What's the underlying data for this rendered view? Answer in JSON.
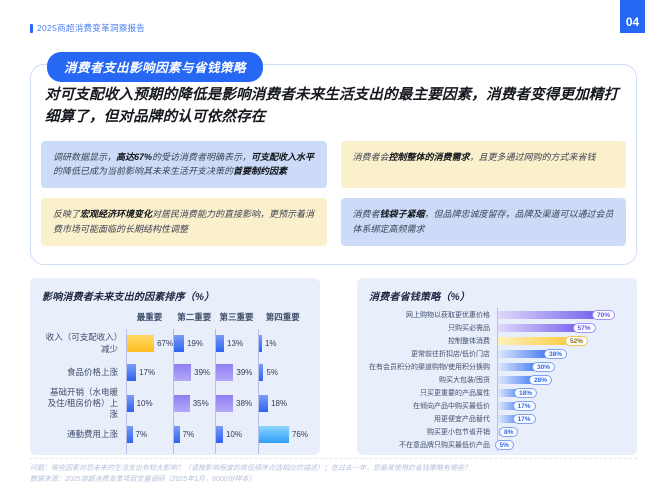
{
  "header": {
    "report_title": "2025商超消费变革洞察报告",
    "page_number": "04"
  },
  "section": {
    "badge": "消费者支出影响因素与省钱策略",
    "headline": "对可支配收入预期的降低是影响消费者未来生活支出的最主要因素，消费者变得更加精打细算了，但对品牌的认可依然存在"
  },
  "callouts": [
    {
      "tone": "blue",
      "segments": [
        {
          "text": "调研数据显示，",
          "bold": false
        },
        {
          "text": "高达67%",
          "bold": true
        },
        {
          "text": "的受访消费者明确表示，",
          "bold": false
        },
        {
          "text": "可支配收入水平",
          "bold": true
        },
        {
          "text": "的降低已成为当前影响其未来生活开支决策的",
          "bold": false
        },
        {
          "text": "首要制约因素",
          "bold": true
        }
      ]
    },
    {
      "tone": "yellow",
      "segments": [
        {
          "text": "消费者会",
          "bold": false
        },
        {
          "text": "控制整体的消费需求",
          "bold": true
        },
        {
          "text": "，且更多通过网购的方式来省钱",
          "bold": false
        }
      ]
    },
    {
      "tone": "yellow",
      "segments": [
        {
          "text": "反映了",
          "bold": false
        },
        {
          "text": "宏观经济环境变化",
          "bold": true
        },
        {
          "text": "对居民消费能力的直接影响，更预示着消费市场可能面临的长期结构性调整",
          "bold": false
        }
      ]
    },
    {
      "tone": "blue",
      "segments": [
        {
          "text": "消费者",
          "bold": false
        },
        {
          "text": "钱袋子紧缩",
          "bold": true
        },
        {
          "text": "，但品牌忠诚度留存，品牌及渠道可以通过会员体系绑定高频需求",
          "bold": false
        }
      ]
    }
  ],
  "chart_data": [
    {
      "type": "bar",
      "title": "影响消费者未来支出的因素排序（%）",
      "orientation": "horizontal-grouped",
      "unit": "%",
      "xlim": [
        0,
        80
      ],
      "columns": [
        "最重要",
        "第二重要",
        "第三重要",
        "第四重要"
      ],
      "rows": [
        {
          "label": "收入（可支配收入）减少",
          "values": [
            67,
            19,
            13,
            1
          ],
          "colors": [
            "yellow",
            "blue",
            "blue",
            "blue"
          ]
        },
        {
          "label": "食品价格上涨",
          "values": [
            17,
            39,
            39,
            5
          ],
          "colors": [
            "blue",
            "purple",
            "purple",
            "blue"
          ]
        },
        {
          "label": "基础开销（水电暖及住/租房价格）上涨",
          "values": [
            10,
            35,
            38,
            18
          ],
          "colors": [
            "blue",
            "purple",
            "purple",
            "blue"
          ]
        },
        {
          "label": "通勤费用上涨",
          "values": [
            7,
            7,
            10,
            76
          ],
          "colors": [
            "blue",
            "blue",
            "blue",
            "cyan"
          ]
        }
      ]
    },
    {
      "type": "bar",
      "title": "消费者省钱策略（%）",
      "orientation": "horizontal",
      "unit": "%",
      "xlim": [
        0,
        80
      ],
      "items": [
        {
          "label": "网上购物以获取更优惠价格",
          "value": 70,
          "color": "purple"
        },
        {
          "label": "只购买必需品",
          "value": 57,
          "color": "purple"
        },
        {
          "label": "控制整体消费",
          "value": 52,
          "color": "yellow"
        },
        {
          "label": "更常前往折扣店/低价门店",
          "value": 38,
          "color": "blue"
        },
        {
          "label": "在有会员积分的渠道购物/使用积分换购",
          "value": 30,
          "color": "blue"
        },
        {
          "label": "购买大包装/囤货",
          "value": 28,
          "color": "blue"
        },
        {
          "label": "只买更重要的产品属性",
          "value": 18,
          "color": "blue"
        },
        {
          "label": "在倾向产品中购买最低价",
          "value": 17,
          "color": "blue"
        },
        {
          "label": "用更便宜产品替代",
          "value": 17,
          "color": "blue"
        },
        {
          "label": "购买更小包节省开销",
          "value": 8,
          "color": "blue"
        },
        {
          "label": "不在意品牌只购买最低价产品",
          "value": 5,
          "color": "blue"
        }
      ]
    }
  ],
  "footnote": {
    "question": "问题：哪些因素对您未来的生活支出有较大影响？（请按影响程度的高低顺序点选相应的描述）；在过去一年，您最常使用的省钱策略有哪些？",
    "source": "数据来源：2025商超消费变革项目定量调研（2025年1月，6000份样本）"
  },
  "colors": {
    "accent_blue": "#2667F4",
    "callout_blue_bg": "#ccdcf8",
    "callout_yellow_bg": "#faf0cb",
    "panel_bg": "#e9eefb",
    "bar_blue": "#2e63ee",
    "bar_purple": "#8472f1",
    "bar_yellow": "#fdbd23",
    "bar_cyan": "#2f9ef6"
  }
}
